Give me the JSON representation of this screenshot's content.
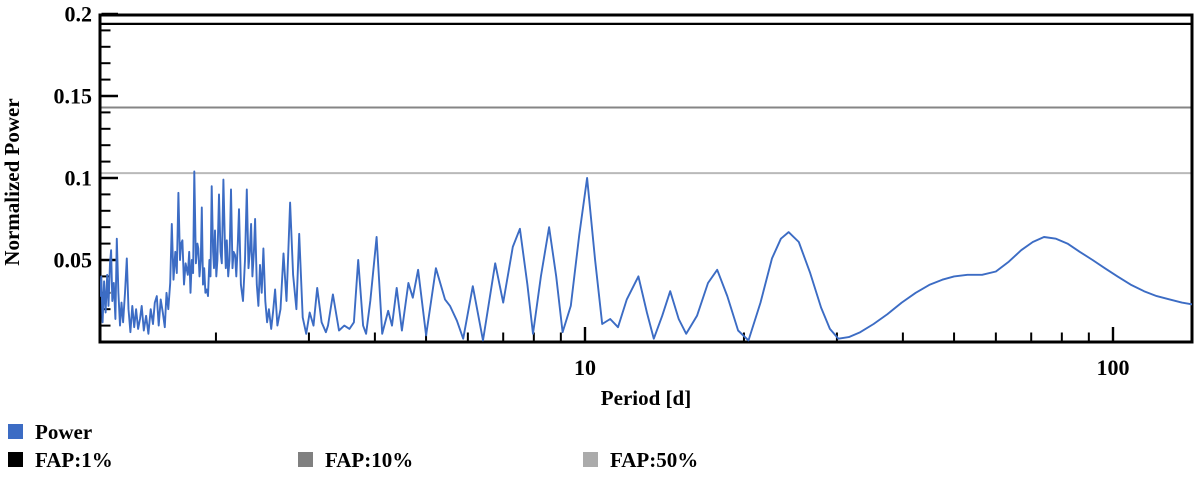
{
  "figure": {
    "y_axis_label": "Normalized Power",
    "x_axis_label": "Period [d]"
  },
  "legend": {
    "power": {
      "label": "Power",
      "color": "#3c6cc4"
    },
    "fap1": {
      "label": "FAP:1%",
      "color": "#000000"
    },
    "fap10": {
      "label": "FAP:10%",
      "color": "#808080"
    },
    "fap50": {
      "label": "FAP:50%",
      "color": "#ababab"
    }
  },
  "chart_data": {
    "type": "line",
    "title": "",
    "xlabel": "Period [d]",
    "ylabel": "Normalized Power",
    "x_scale": "log",
    "xlim": [
      1.2,
      141
    ],
    "ylim": [
      0,
      0.2
    ],
    "grid": false,
    "legend_position": "below-left",
    "x_ticks": [
      {
        "value": 10,
        "label": "10"
      },
      {
        "value": 100,
        "label": "100"
      }
    ],
    "x_minor_ticks": [
      2,
      3,
      4,
      5,
      6,
      7,
      8,
      9,
      20,
      30,
      40,
      50,
      60,
      70,
      80,
      90
    ],
    "y_ticks": [
      {
        "value": 0.05,
        "label": "0.05"
      },
      {
        "value": 0.1,
        "label": "0.1"
      },
      {
        "value": 0.15,
        "label": "0.15"
      },
      {
        "value": 0.2,
        "label": "0.2"
      }
    ],
    "y_minor_step": 0.01,
    "fap_lines": [
      {
        "name": "FAP:1%",
        "value": 0.194,
        "color": "#000000",
        "width": 2.2
      },
      {
        "name": "FAP:10%",
        "value": 0.143,
        "color": "#858585",
        "width": 2.0
      },
      {
        "name": "FAP:50%",
        "value": 0.103,
        "color": "#b9b9b9",
        "width": 2.0
      }
    ],
    "series": [
      {
        "name": "Power",
        "color": "#3c6cc4",
        "points": [
          [
            1.206,
            0.028
          ],
          [
            1.213,
            0.04
          ],
          [
            1.22,
            0.012
          ],
          [
            1.228,
            0.037
          ],
          [
            1.236,
            0.018
          ],
          [
            1.245,
            0.041
          ],
          [
            1.252,
            0.022
          ],
          [
            1.26,
            0.048
          ],
          [
            1.266,
            0.056
          ],
          [
            1.273,
            0.025
          ],
          [
            1.281,
            0.036
          ],
          [
            1.29,
            0.014
          ],
          [
            1.298,
            0.063
          ],
          [
            1.307,
            0.03
          ],
          [
            1.316,
            0.01
          ],
          [
            1.325,
            0.024
          ],
          [
            1.334,
            0.012
          ],
          [
            1.345,
            0.03
          ],
          [
            1.356,
            0.051
          ],
          [
            1.366,
            0.02
          ],
          [
            1.377,
            0.006
          ],
          [
            1.389,
            0.022
          ],
          [
            1.4,
            0.009
          ],
          [
            1.412,
            0.02
          ],
          [
            1.424,
            0.008
          ],
          [
            1.436,
            0.014
          ],
          [
            1.447,
            0.022
          ],
          [
            1.46,
            0.007
          ],
          [
            1.475,
            0.016
          ],
          [
            1.49,
            0.005
          ],
          [
            1.505,
            0.02
          ],
          [
            1.52,
            0.011
          ],
          [
            1.532,
            0.024
          ],
          [
            1.545,
            0.028
          ],
          [
            1.558,
            0.01
          ],
          [
            1.572,
            0.026
          ],
          [
            1.586,
            0.018
          ],
          [
            1.6,
            0.009
          ],
          [
            1.612,
            0.03
          ],
          [
            1.625,
            0.02
          ],
          [
            1.638,
            0.036
          ],
          [
            1.65,
            0.072
          ],
          [
            1.662,
            0.038
          ],
          [
            1.675,
            0.055
          ],
          [
            1.686,
            0.042
          ],
          [
            1.698,
            0.091
          ],
          [
            1.71,
            0.05
          ],
          [
            1.718,
            0.06
          ],
          [
            1.728,
            0.062
          ],
          [
            1.74,
            0.035
          ],
          [
            1.752,
            0.048
          ],
          [
            1.769,
            0.041
          ],
          [
            1.78,
            0.055
          ],
          [
            1.79,
            0.03
          ],
          [
            1.8,
            0.05
          ],
          [
            1.81,
            0.042
          ],
          [
            1.82,
            0.104
          ],
          [
            1.833,
            0.048
          ],
          [
            1.845,
            0.06
          ],
          [
            1.852,
            0.057
          ],
          [
            1.862,
            0.04
          ],
          [
            1.872,
            0.05
          ],
          [
            1.88,
            0.082
          ],
          [
            1.89,
            0.035
          ],
          [
            1.9,
            0.045
          ],
          [
            1.91,
            0.03
          ],
          [
            1.922,
            0.032
          ],
          [
            1.932,
            0.028
          ],
          [
            1.944,
            0.05
          ],
          [
            1.953,
            0.04
          ],
          [
            1.963,
            0.095
          ],
          [
            1.975,
            0.055
          ],
          [
            1.983,
            0.045
          ],
          [
            1.992,
            0.068
          ],
          [
            2.003,
            0.04
          ],
          [
            2.013,
            0.05
          ],
          [
            2.027,
            0.09
          ],
          [
            2.04,
            0.055
          ],
          [
            2.052,
            0.048
          ],
          [
            2.066,
            0.099
          ],
          [
            2.08,
            0.06
          ],
          [
            2.088,
            0.045
          ],
          [
            2.097,
            0.062
          ],
          [
            2.11,
            0.04
          ],
          [
            2.122,
            0.05
          ],
          [
            2.136,
            0.093
          ],
          [
            2.15,
            0.045
          ],
          [
            2.16,
            0.055
          ],
          [
            2.174,
            0.053
          ],
          [
            2.186,
            0.04
          ],
          [
            2.2,
            0.06
          ],
          [
            2.212,
            0.081
          ],
          [
            2.23,
            0.035
          ],
          [
            2.25,
            0.025
          ],
          [
            2.27,
            0.05
          ],
          [
            2.288,
            0.093
          ],
          [
            2.305,
            0.045
          ],
          [
            2.318,
            0.055
          ],
          [
            2.331,
            0.072
          ],
          [
            2.345,
            0.04
          ],
          [
            2.36,
            0.055
          ],
          [
            2.372,
            0.075
          ],
          [
            2.39,
            0.035
          ],
          [
            2.407,
            0.022
          ],
          [
            2.424,
            0.047
          ],
          [
            2.442,
            0.03
          ],
          [
            2.46,
            0.057
          ],
          [
            2.48,
            0.025
          ],
          [
            2.5,
            0.012
          ],
          [
            2.52,
            0.02
          ],
          [
            2.545,
            0.008
          ],
          [
            2.565,
            0.018
          ],
          [
            2.589,
            0.032
          ],
          [
            2.615,
            0.01
          ],
          [
            2.65,
            0.02
          ],
          [
            2.685,
            0.054
          ],
          [
            2.72,
            0.025
          ],
          [
            2.764,
            0.085
          ],
          [
            2.8,
            0.041
          ],
          [
            2.84,
            0.02
          ],
          [
            2.875,
            0.066
          ],
          [
            2.92,
            0.015
          ],
          [
            2.965,
            0.005
          ],
          [
            3.01,
            0.018
          ],
          [
            3.06,
            0.01
          ],
          [
            3.11,
            0.033
          ],
          [
            3.17,
            0.012
          ],
          [
            3.23,
            0.006
          ],
          [
            3.26,
            0.01
          ],
          [
            3.33,
            0.029
          ],
          [
            3.42,
            0.007
          ],
          [
            3.5,
            0.01
          ],
          [
            3.58,
            0.008
          ],
          [
            3.65,
            0.012
          ],
          [
            3.72,
            0.05
          ],
          [
            3.8,
            0.01
          ],
          [
            3.85,
            0.005
          ],
          [
            3.92,
            0.025
          ],
          [
            4.03,
            0.064
          ],
          [
            4.13,
            0.005
          ],
          [
            4.24,
            0.019
          ],
          [
            4.31,
            0.01
          ],
          [
            4.4,
            0.033
          ],
          [
            4.5,
            0.007
          ],
          [
            4.63,
            0.036
          ],
          [
            4.72,
            0.027
          ],
          [
            4.83,
            0.044
          ],
          [
            5.0,
            0.004
          ],
          [
            5.22,
            0.045
          ],
          [
            5.43,
            0.026
          ],
          [
            5.55,
            0.022
          ],
          [
            5.72,
            0.013
          ],
          [
            5.88,
            0.002
          ],
          [
            6.13,
            0.034
          ],
          [
            6.41,
            0.001
          ],
          [
            6.76,
            0.048
          ],
          [
            7.0,
            0.024
          ],
          [
            7.3,
            0.058
          ],
          [
            7.53,
            0.069
          ],
          [
            7.78,
            0.035
          ],
          [
            7.97,
            0.005
          ],
          [
            8.25,
            0.04
          ],
          [
            8.55,
            0.07
          ],
          [
            8.82,
            0.04
          ],
          [
            9.07,
            0.006
          ],
          [
            9.4,
            0.022
          ],
          [
            9.75,
            0.065
          ],
          [
            10.09,
            0.1
          ],
          [
            10.45,
            0.05
          ],
          [
            10.78,
            0.011
          ],
          [
            11.16,
            0.014
          ],
          [
            11.55,
            0.009
          ],
          [
            12.0,
            0.026
          ],
          [
            12.62,
            0.04
          ],
          [
            13.1,
            0.018
          ],
          [
            13.5,
            0.002
          ],
          [
            14.0,
            0.016
          ],
          [
            14.5,
            0.031
          ],
          [
            15.05,
            0.014
          ],
          [
            15.55,
            0.005
          ],
          [
            16.3,
            0.016
          ],
          [
            17.1,
            0.036
          ],
          [
            17.8,
            0.044
          ],
          [
            18.6,
            0.028
          ],
          [
            19.5,
            0.007
          ],
          [
            20.4,
            0.001
          ],
          [
            21.5,
            0.024
          ],
          [
            22.6,
            0.051
          ],
          [
            23.5,
            0.063
          ],
          [
            24.3,
            0.067
          ],
          [
            25.4,
            0.061
          ],
          [
            26.7,
            0.042
          ],
          [
            28.0,
            0.021
          ],
          [
            29.1,
            0.008
          ],
          [
            30.2,
            0.002
          ],
          [
            31.6,
            0.003
          ],
          [
            33.2,
            0.006
          ],
          [
            35.2,
            0.011
          ],
          [
            37.4,
            0.017
          ],
          [
            39.8,
            0.024
          ],
          [
            42.3,
            0.03
          ],
          [
            45.0,
            0.035
          ],
          [
            47.5,
            0.038
          ],
          [
            50.0,
            0.04
          ],
          [
            53.0,
            0.041
          ],
          [
            56.5,
            0.041
          ],
          [
            60.0,
            0.043
          ],
          [
            63.5,
            0.049
          ],
          [
            67.0,
            0.056
          ],
          [
            70.5,
            0.061
          ],
          [
            74.0,
            0.064
          ],
          [
            78.0,
            0.063
          ],
          [
            82.0,
            0.06
          ],
          [
            86.5,
            0.055
          ],
          [
            91.5,
            0.05
          ],
          [
            96.5,
            0.045
          ],
          [
            102.0,
            0.04
          ],
          [
            108.0,
            0.035
          ],
          [
            114.5,
            0.031
          ],
          [
            121.0,
            0.028
          ],
          [
            128.0,
            0.026
          ],
          [
            135.0,
            0.024
          ],
          [
            141.0,
            0.023
          ]
        ]
      }
    ]
  }
}
